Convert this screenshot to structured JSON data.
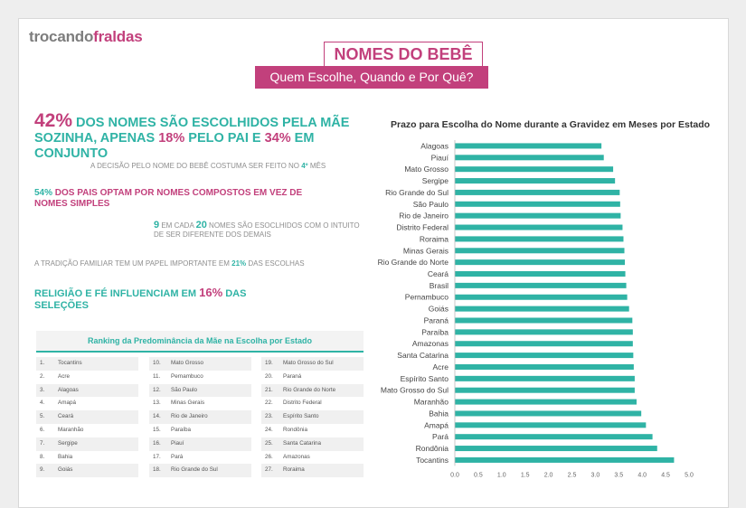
{
  "logo": {
    "part1": "trocando",
    "part2": "fraldas"
  },
  "header": {
    "title": "NOMES DO BEBÊ",
    "subtitle": "Quem Escolhe, Quando e Por Quê?"
  },
  "stats": {
    "s1": {
      "p1": "42%",
      "t1": " DOS NOMES SÃO ESCOLHIDOS PELA MÃE SOZINHA, APENAS ",
      "p2": "18%",
      "t2": " PELO PAI E ",
      "p3": "34%",
      "t3": " EM CONJUNTO"
    },
    "s2": {
      "t1": "A DECISÃO PELO NOME DO BEBÊ COSTUMA SER FEITO NO ",
      "p1": "4º",
      "t2": " MÊS"
    },
    "s3": {
      "p1": "54%",
      "t1": " DOS PAIS OPTAM POR NOMES COMPOSTOS EM VEZ DE NOMES SIMPLES"
    },
    "s4": {
      "p1": "9",
      "t1": " EM CADA ",
      "p2": "20",
      "t2": " NOMES SÃO ESOCLHIDOS COM O INTUITO DE SER DIFERENTE DOS DEMAIS"
    },
    "s5": {
      "t1": "A TRADIÇÃO FAMILIAR TEM UM PAPEL IMPORTANTE EM ",
      "p1": "21%",
      "t2": " DAS ESCOLHAS"
    },
    "s6": {
      "t1": "RELIGIÃO E FÉ INFLUENCIAM EM ",
      "p1": "16%",
      "t2": " DAS SELEÇÕES"
    }
  },
  "ranking": {
    "title": "Ranking da Predominância da Mãe na Escolha por Estado",
    "columns": [
      [
        {
          "n": "1.",
          "name": "Tocantins"
        },
        {
          "n": "2.",
          "name": "Acre"
        },
        {
          "n": "3.",
          "name": "Alagoas"
        },
        {
          "n": "4.",
          "name": "Amapá"
        },
        {
          "n": "5.",
          "name": "Ceará"
        },
        {
          "n": "6.",
          "name": "Maranhão"
        },
        {
          "n": "7.",
          "name": "Sergipe"
        },
        {
          "n": "8.",
          "name": "Bahia"
        },
        {
          "n": "9.",
          "name": "Goiás"
        }
      ],
      [
        {
          "n": "10.",
          "name": "Mato Grosso"
        },
        {
          "n": "11.",
          "name": "Pernambuco"
        },
        {
          "n": "12.",
          "name": "São Paulo"
        },
        {
          "n": "13.",
          "name": "Minas Gerais"
        },
        {
          "n": "14.",
          "name": "Rio de Janeiro"
        },
        {
          "n": "15.",
          "name": "Paraíba"
        },
        {
          "n": "16.",
          "name": "Piauí"
        },
        {
          "n": "17.",
          "name": "Pará"
        },
        {
          "n": "18.",
          "name": "Rio Grande do Sul"
        }
      ],
      [
        {
          "n": "19.",
          "name": "Mato Grosso do Sul"
        },
        {
          "n": "20.",
          "name": "Paraná"
        },
        {
          "n": "21.",
          "name": "Rio Grande do Norte"
        },
        {
          "n": "22.",
          "name": "Distrito Federal"
        },
        {
          "n": "23.",
          "name": "Espírito Santo"
        },
        {
          "n": "24.",
          "name": "Rondônia"
        },
        {
          "n": "25.",
          "name": "Santa Catarina"
        },
        {
          "n": "26.",
          "name": "Amazonas"
        },
        {
          "n": "27.",
          "name": "Roraima"
        }
      ]
    ]
  },
  "colors": {
    "pink": "#c2407c",
    "teal": "#2fb3a5",
    "gray": "#8e8e8e"
  },
  "chart_data": {
    "type": "bar",
    "orientation": "horizontal",
    "title": "Prazo para Escolha do Nome durante a Gravidez em Meses por Estado",
    "categories": [
      "Alagoas",
      "Piauí",
      "Mato Grosso",
      "Sergipe",
      "Rio Grande do Sul",
      "São Paulo",
      "Rio de Janeiro",
      "Distrito Federal",
      "Roraima",
      "Minas Gerais",
      "Rio Grande do Norte",
      "Ceará",
      "Brasil",
      "Pernambuco",
      "Goiás",
      "Paraná",
      "Paraíba",
      "Amazonas",
      "Santa Catarina",
      "Acre",
      "Espírito Santo",
      "Mato Grosso do Sul",
      "Maranhão",
      "Bahia",
      "Amapá",
      "Pará",
      "Rondônia",
      "Tocantins"
    ],
    "values": [
      3.13,
      3.18,
      3.38,
      3.42,
      3.52,
      3.53,
      3.54,
      3.58,
      3.6,
      3.62,
      3.63,
      3.64,
      3.66,
      3.68,
      3.72,
      3.79,
      3.8,
      3.8,
      3.81,
      3.82,
      3.84,
      3.84,
      3.88,
      3.98,
      4.08,
      4.22,
      4.32,
      4.68
    ],
    "xlim": [
      0,
      5.0
    ],
    "xticks": [
      "0.0",
      "0.5",
      "1.0",
      "1.5",
      "2.0",
      "2.5",
      "3.0",
      "3.5",
      "4.0",
      "4.5",
      "5.0"
    ],
    "bar_color": "#2fb3a5",
    "grid": false
  }
}
